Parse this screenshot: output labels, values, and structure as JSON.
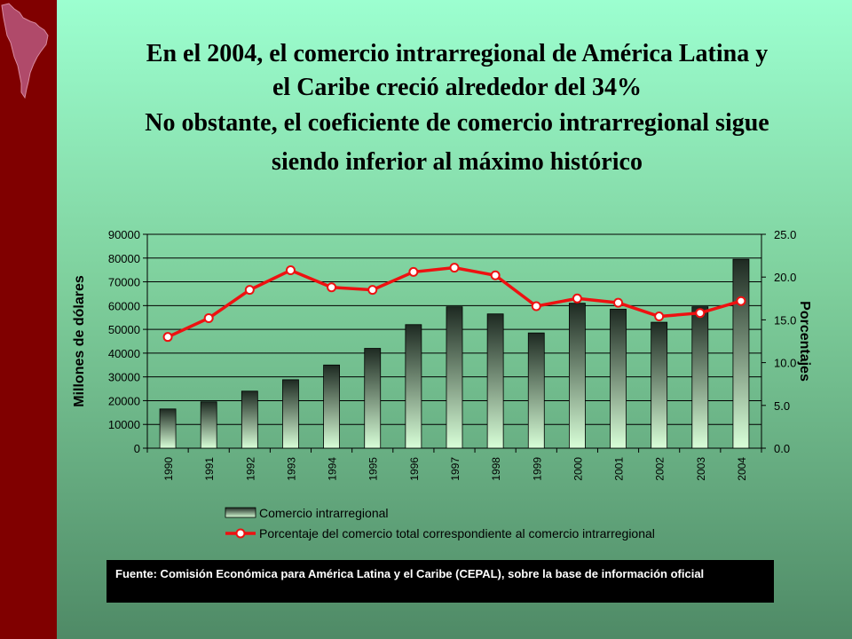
{
  "title": {
    "line1": "En el 2004, el comercio intrarregional de América Latina y",
    "line2": "el Caribe creció alrededor del 34%",
    "line3": "No obstante, el coeficiente de comercio intrarregional sigue",
    "line4": "siendo inferior al máximo histórico"
  },
  "chart_data": {
    "type": "bar",
    "categories": [
      "1990",
      "1991",
      "1992",
      "1993",
      "1994",
      "1995",
      "1996",
      "1997",
      "1998",
      "1999",
      "2000",
      "2001",
      "2002",
      "2003",
      "2004"
    ],
    "series": [
      {
        "name": "Comercio intrarregional",
        "kind": "bar",
        "axis": "left",
        "values": [
          16500,
          19500,
          24000,
          28800,
          35000,
          42000,
          52000,
          59500,
          56500,
          48500,
          61000,
          58500,
          53000,
          59500,
          79500
        ]
      },
      {
        "name": "Porcentaje del comercio total correspondiente al comercio intrarregional",
        "kind": "line",
        "axis": "right",
        "values": [
          13.0,
          15.2,
          18.5,
          20.8,
          18.8,
          18.5,
          20.6,
          21.1,
          20.2,
          16.6,
          17.5,
          17.0,
          15.4,
          15.8,
          17.2
        ]
      }
    ],
    "ylabel": "Millones de dólares",
    "ylim": [
      0,
      90000
    ],
    "yticks": [
      "0",
      "10000",
      "20000",
      "30000",
      "40000",
      "50000",
      "60000",
      "70000",
      "80000",
      "90000"
    ],
    "y2label": "Porcentajes",
    "y2lim": [
      0,
      25
    ],
    "y2ticks": [
      "0.0",
      "5.0",
      "10.0",
      "15.0",
      "20.0",
      "25.0"
    ],
    "grid": true,
    "legend": "bottom",
    "colors": {
      "line": "#ee1111",
      "bar_top": "#1e2a22",
      "bar_bottom": "#d8ffd8",
      "grid": "#000000"
    }
  },
  "source": "Fuente: Comisión Económica para América Latina y el Caribe (CEPAL), sobre la base de información oficial"
}
